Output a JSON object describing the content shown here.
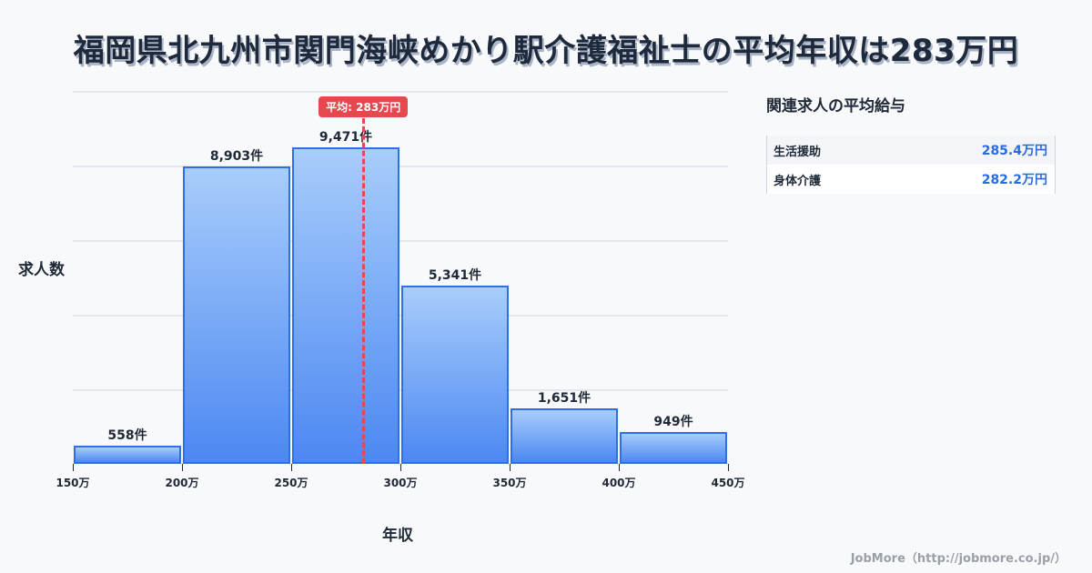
{
  "title": "福岡県北九州市関門海峡めかり駅介護福祉士の平均年収は283万円",
  "chart_data": {
    "type": "bar",
    "title": "福岡県北九州市関門海峡めかり駅介護福祉士の平均年収は283万円",
    "xlabel": "年収",
    "ylabel": "求人数",
    "categories": [
      "150万-200万",
      "200万-250万",
      "250万-300万",
      "300万-350万",
      "350万-400万",
      "400万-450万"
    ],
    "bin_edges": [
      150,
      200,
      250,
      300,
      350,
      400,
      450
    ],
    "tick_labels": [
      "150万",
      "200万",
      "250万",
      "300万",
      "350万",
      "400万",
      "450万"
    ],
    "values": [
      558,
      8903,
      9471,
      5341,
      1651,
      949
    ],
    "value_labels": [
      "558件",
      "8,903件",
      "9,471件",
      "5,341件",
      "1,651件",
      "949件"
    ],
    "ylim": [
      0,
      11160
    ],
    "grid": true,
    "average": {
      "value": 283,
      "label": "平均: 283万円",
      "color": "#e5484d"
    },
    "bar_color": "#4d88f2",
    "bar_border_color": "#2f6fe4"
  },
  "panel": {
    "title": "関連求人の平均給与",
    "rows": [
      {
        "label": "生活援助",
        "value": "285.4万円"
      },
      {
        "label": "身体介護",
        "value": "282.2万円"
      }
    ]
  },
  "footer": "JobMore（http://jobmore.co.jp/）"
}
